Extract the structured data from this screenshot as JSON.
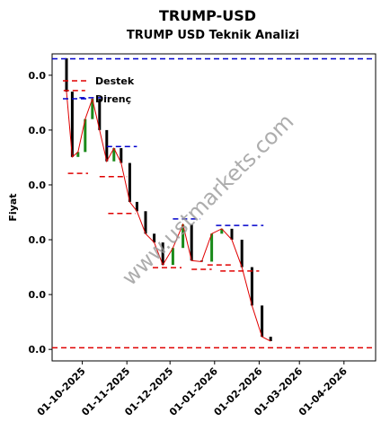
{
  "chart_data": {
    "type": "candlestick",
    "title": "TRUMP-USD",
    "subtitle": "TRUMP USD Teknik Analizi",
    "ylabel": "Fiyat",
    "watermark": "www.ustmarkets.com",
    "x": [
      "2025-09-20",
      "2025-09-24",
      "2025-09-28",
      "2025-10-03",
      "2025-10-08",
      "2025-10-13",
      "2025-10-18",
      "2025-10-23",
      "2025-10-28",
      "2025-11-03",
      "2025-11-08",
      "2025-11-14",
      "2025-11-20",
      "2025-11-26",
      "2025-12-03",
      "2025-12-10",
      "2025-12-16",
      "2025-12-23",
      "2025-12-30",
      "2026-01-06",
      "2026-01-13",
      "2026-01-20",
      "2026-01-27",
      "2026-02-03",
      "2026-02-09"
    ],
    "open": [
      0.0531,
      0.047,
      0.0351,
      0.036,
      0.042,
      0.0457,
      0.04,
      0.0343,
      0.0367,
      0.034,
      0.0269,
      0.0252,
      0.0211,
      0.0195,
      0.0154,
      0.0185,
      0.0228,
      0.0162,
      0.016,
      0.0211,
      0.022,
      0.02,
      0.015,
      0.008,
      0.0023
    ],
    "close": [
      0.047,
      0.0351,
      0.036,
      0.042,
      0.0457,
      0.04,
      0.0343,
      0.0367,
      0.034,
      0.0269,
      0.0252,
      0.0211,
      0.0195,
      0.0154,
      0.0185,
      0.0228,
      0.0162,
      0.016,
      0.0211,
      0.022,
      0.02,
      0.015,
      0.008,
      0.0023,
      0.0015
    ],
    "line_color": "#e00000",
    "up_color": "#1a8a1a",
    "down_color": "#000000",
    "support": {
      "name": "Destek",
      "color": "#e00000",
      "levels": [
        {
          "value": 0.0472,
          "x": [
            "2025-09-18",
            "2025-10-03"
          ]
        },
        {
          "value": 0.0321,
          "x": [
            "2025-09-21",
            "2025-10-05"
          ]
        },
        {
          "value": 0.0315,
          "x": [
            "2025-10-13",
            "2025-11-01"
          ]
        },
        {
          "value": 0.0248,
          "x": [
            "2025-10-19",
            "2025-11-07"
          ]
        },
        {
          "value": 0.0149,
          "x": [
            "2025-11-19",
            "2025-12-09"
          ]
        },
        {
          "value": 0.0146,
          "x": [
            "2025-12-16",
            "2025-12-30"
          ]
        },
        {
          "value": 0.0154,
          "x": [
            "2025-12-27",
            "2026-01-14"
          ]
        },
        {
          "value": 0.0143,
          "x": [
            "2026-01-05",
            "2026-02-01"
          ]
        },
        {
          "value": 0.0003
        }
      ]
    },
    "resistance": {
      "name": "Direnç",
      "color": "#0000cc",
      "levels": [
        {
          "value": 0.053
        },
        {
          "value": 0.0459,
          "x": [
            "2025-09-29",
            "2025-10-18"
          ]
        },
        {
          "value": 0.037,
          "x": [
            "2025-10-18",
            "2025-11-08"
          ]
        },
        {
          "value": 0.0238,
          "x": [
            "2025-12-03",
            "2025-12-22"
          ]
        },
        {
          "value": 0.0226,
          "x": [
            "2026-01-02",
            "2026-02-04"
          ]
        }
      ]
    },
    "xlim": [
      "2025-09-10",
      "2026-04-23"
    ],
    "xticks": [
      {
        "value": "2025-10-01",
        "label": "01-10-2025"
      },
      {
        "value": "2025-11-01",
        "label": "01-11-2025"
      },
      {
        "value": "2025-12-01",
        "label": "01-12-2025"
      },
      {
        "value": "2026-01-01",
        "label": "01-01-2026"
      },
      {
        "value": "2026-02-01",
        "label": "01-02-2026"
      },
      {
        "value": "2026-03-01",
        "label": "01-03-2026"
      },
      {
        "value": "2026-04-01",
        "label": "01-04-2026"
      }
    ],
    "ylim": [
      -0.0021,
      0.0539
    ],
    "yticks": [
      {
        "value": 0,
        "label": "0.0"
      },
      {
        "value": 0.01,
        "label": "0.0"
      },
      {
        "value": 0.02,
        "label": "0.0"
      },
      {
        "value": 0.03,
        "label": "0.0"
      },
      {
        "value": 0.04,
        "label": "0.0"
      },
      {
        "value": 0.05,
        "label": "0.0"
      }
    ],
    "legend": "upper left"
  }
}
